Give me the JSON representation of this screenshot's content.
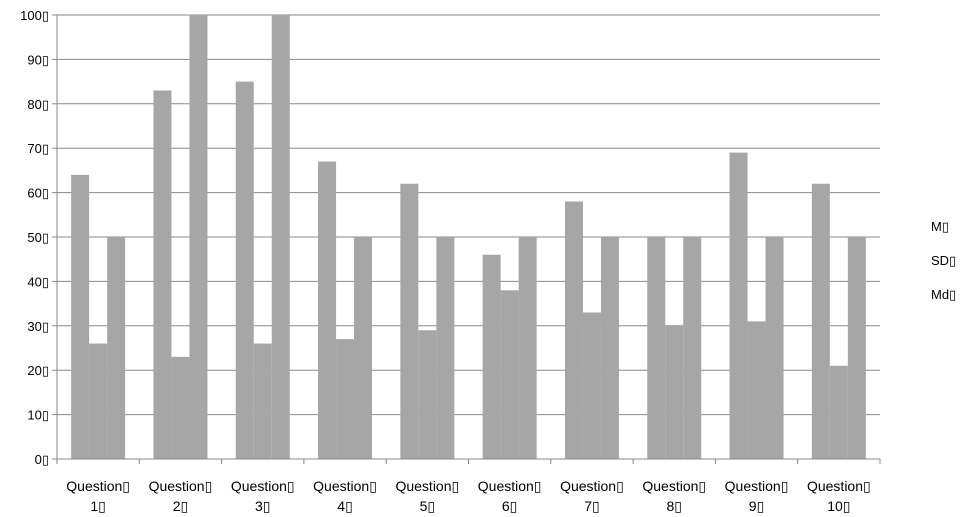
{
  "chart_data": {
    "type": "bar",
    "categories": [
      [
        "Question▯",
        "1▯"
      ],
      [
        "Question▯",
        "2▯"
      ],
      [
        "Question▯",
        "3▯"
      ],
      [
        "Question▯",
        "4▯"
      ],
      [
        "Question▯",
        "5▯"
      ],
      [
        "Question▯",
        "6▯"
      ],
      [
        "Question▯",
        "7▯"
      ],
      [
        "Question▯",
        "8▯"
      ],
      [
        "Question▯",
        "9▯"
      ],
      [
        "Question▯",
        "10▯"
      ]
    ],
    "series": [
      {
        "name": "M▯",
        "values": [
          64,
          83,
          85,
          67,
          62,
          46,
          58,
          50,
          69,
          62
        ]
      },
      {
        "name": "SD▯",
        "values": [
          26,
          23,
          26,
          27,
          29,
          38,
          33,
          30,
          31,
          21
        ]
      },
      {
        "name": "Md▯",
        "values": [
          50,
          100,
          100,
          50,
          50,
          50,
          50,
          50,
          50,
          50
        ]
      }
    ],
    "y_ticks": [
      "0▯",
      "10▯",
      "20▯",
      "30▯",
      "40▯",
      "50▯",
      "60▯",
      "70▯",
      "80▯",
      "90▯",
      "100▯"
    ],
    "ylim": [
      0,
      100
    ],
    "grid": true,
    "legend_position": "right",
    "bar_color": "#a6a6a6",
    "grid_color": "#888888"
  }
}
